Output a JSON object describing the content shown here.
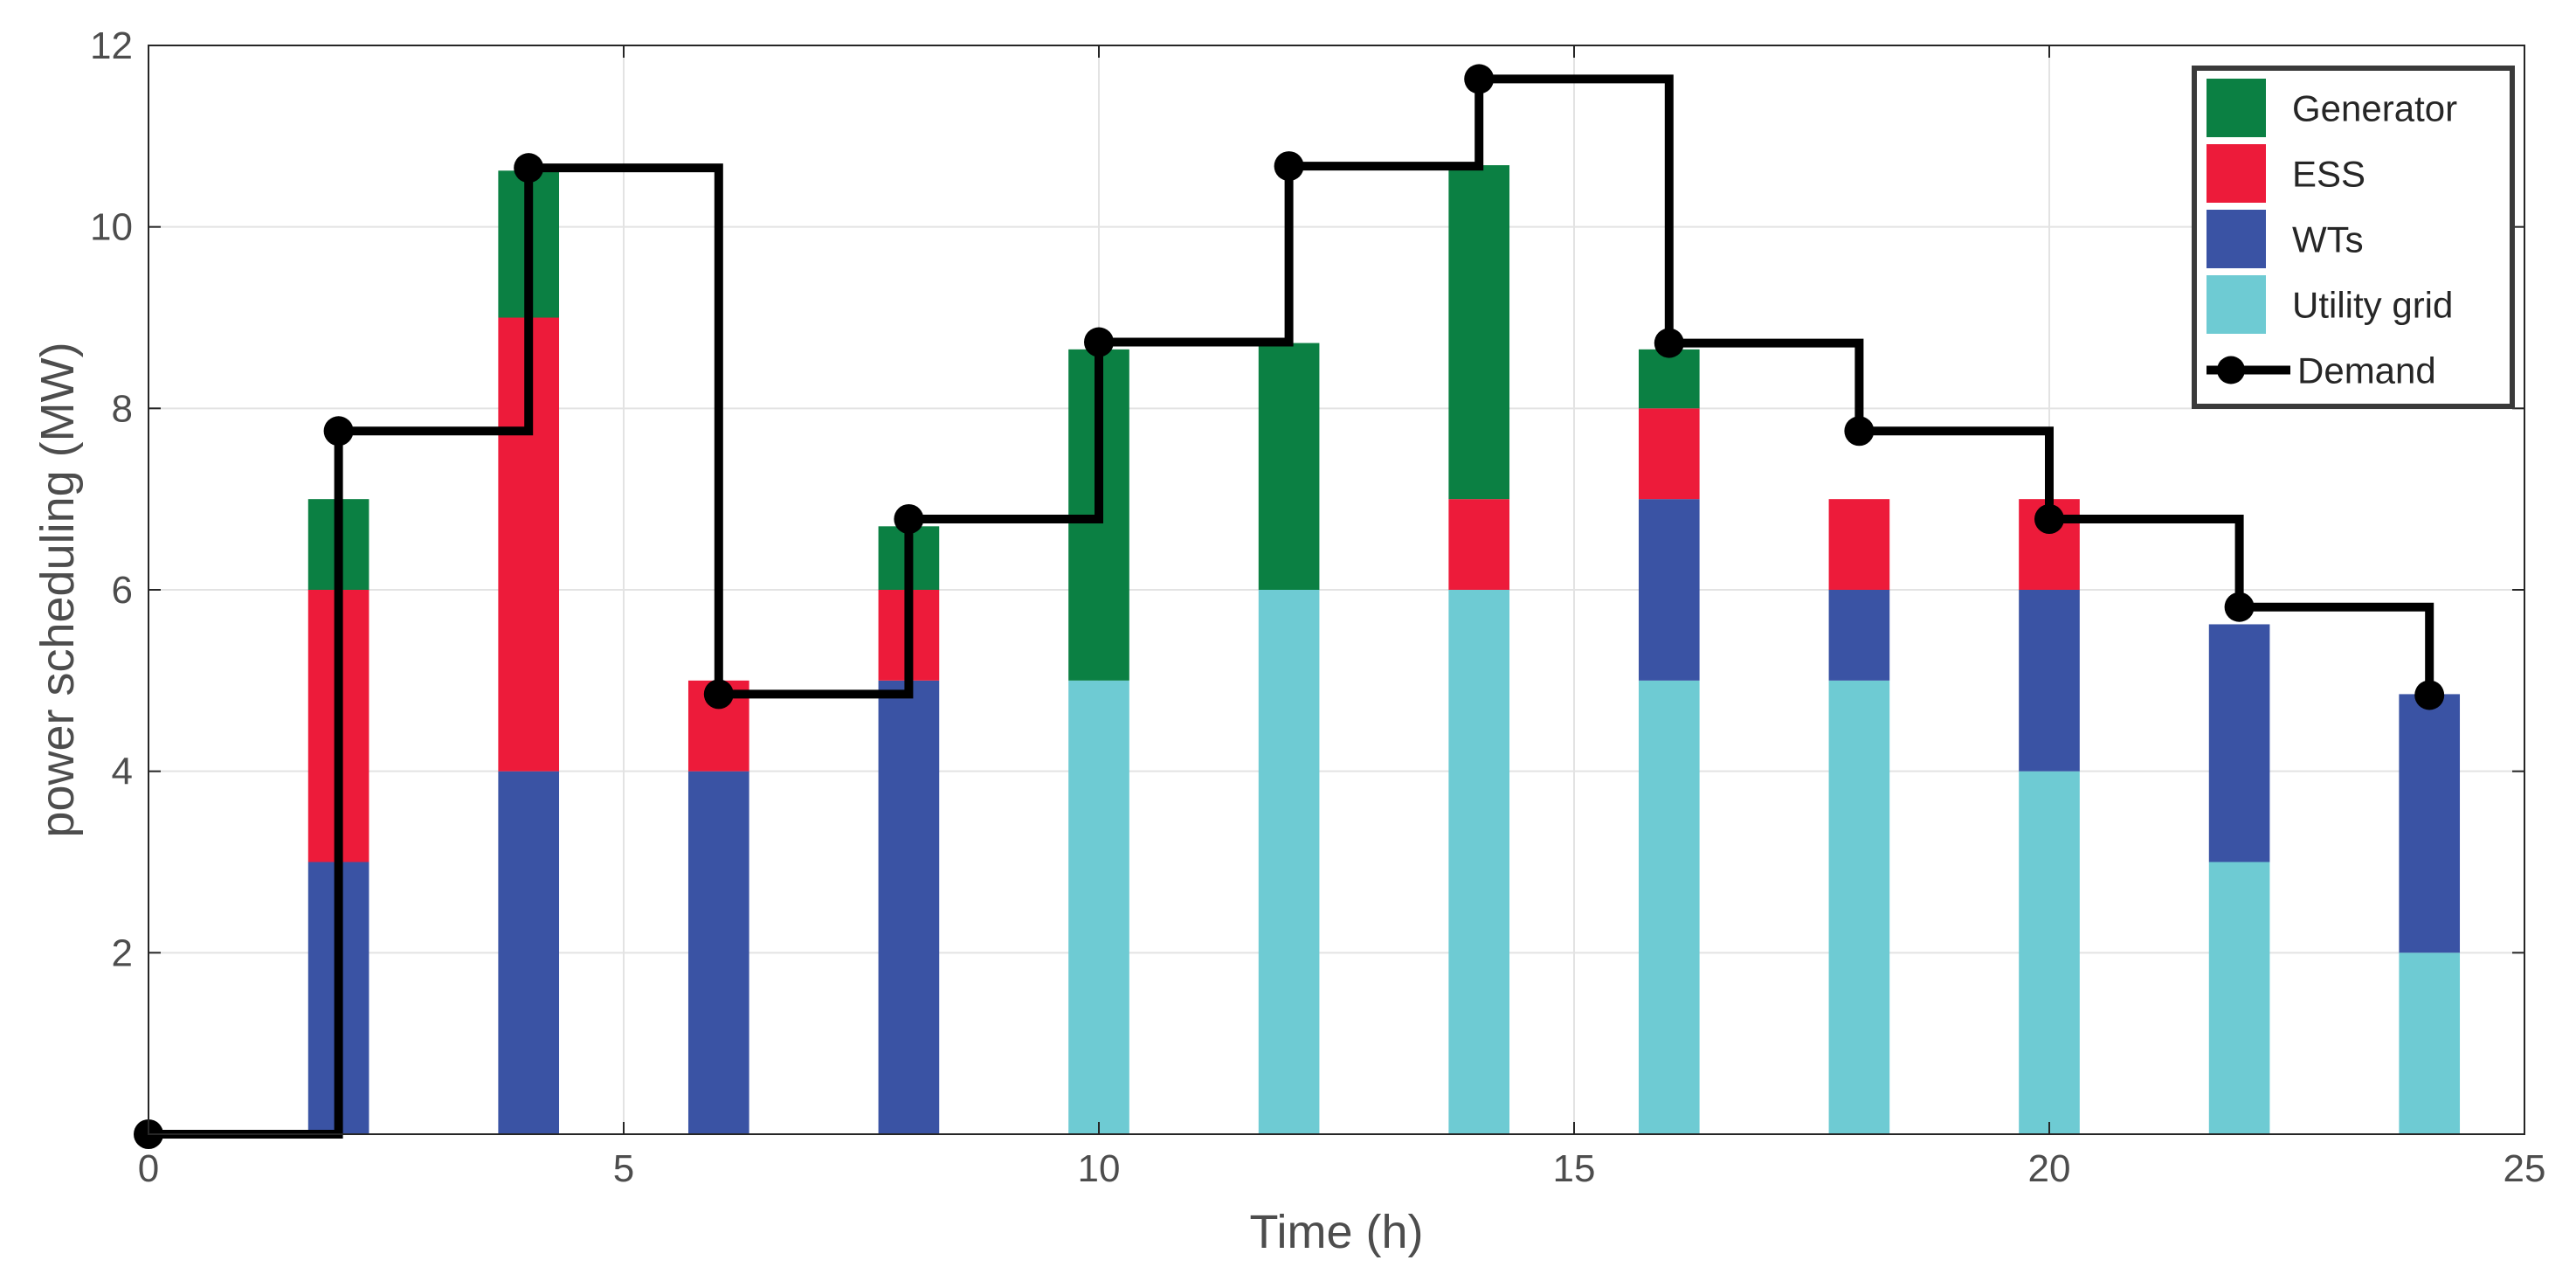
{
  "chart_data": {
    "type": "bar",
    "stacked": true,
    "xlabel": "Time (h)",
    "ylabel": "power scheduling (MW)",
    "xlim": [
      0,
      25
    ],
    "ylim": [
      0,
      12
    ],
    "grid": true,
    "legend_position": "top-right",
    "x_ticks": [
      {
        "value": 0,
        "label": "0"
      },
      {
        "value": 5,
        "label": "5"
      },
      {
        "value": 10,
        "label": "10"
      },
      {
        "value": 15,
        "label": "15"
      },
      {
        "value": 20,
        "label": "20"
      },
      {
        "value": 25,
        "label": "25"
      }
    ],
    "y_ticks": [
      {
        "value": 2,
        "label": "2"
      },
      {
        "value": 4,
        "label": "4"
      },
      {
        "value": 6,
        "label": "6"
      },
      {
        "value": 8,
        "label": "8"
      },
      {
        "value": 10,
        "label": "10"
      },
      {
        "value": 12,
        "label": "12"
      }
    ],
    "x": [
      2,
      4,
      6,
      8,
      10,
      12,
      14,
      16,
      18,
      20,
      22,
      24
    ],
    "series": [
      {
        "name": "Utility grid",
        "color": "#6ecbd3",
        "values": [
          0,
          0,
          0,
          0,
          5,
          6,
          6,
          5,
          5,
          4,
          3,
          2
        ]
      },
      {
        "name": "WTs",
        "color": "#3a53a4",
        "values": [
          3,
          4,
          4,
          5,
          0,
          0,
          0,
          2,
          1,
          2,
          2.62,
          2.85
        ]
      },
      {
        "name": "ESS",
        "color": "#ed1b3a",
        "values": [
          3,
          5,
          1,
          1,
          0,
          0,
          1,
          1,
          1,
          1,
          0,
          0
        ]
      },
      {
        "name": "Generator",
        "color": "#0b8043",
        "values": [
          1,
          1.62,
          0,
          0.7,
          3.65,
          2.72,
          3.68,
          0.65,
          0,
          0,
          0,
          0
        ]
      }
    ],
    "demand": {
      "name": "Demand",
      "color": "#000000",
      "x": [
        0,
        2,
        4,
        6,
        8,
        10,
        12,
        14,
        16,
        18,
        20,
        22,
        24
      ],
      "values": [
        0,
        7.75,
        10.65,
        4.85,
        6.78,
        8.73,
        10.67,
        11.63,
        8.72,
        7.75,
        6.78,
        5.81,
        4.84
      ]
    },
    "legend": [
      "Generator",
      "ESS",
      "WTs",
      "Utility grid",
      "Demand"
    ]
  }
}
